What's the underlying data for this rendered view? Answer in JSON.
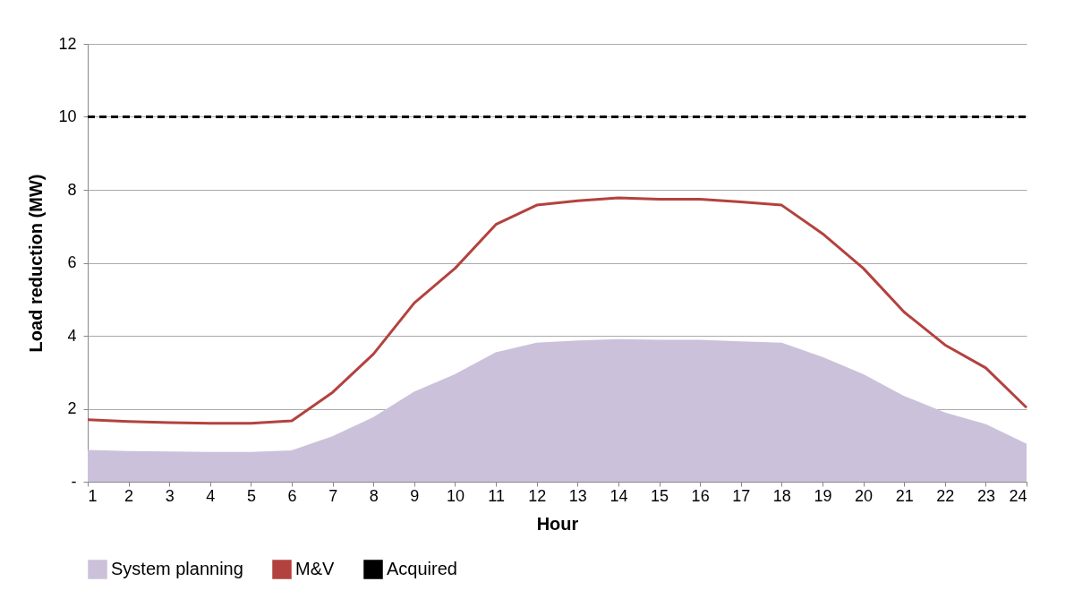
{
  "chart_data": {
    "type": "area",
    "xlabel": "Hour",
    "ylabel": "Load reduction (MW)",
    "x": [
      1,
      2,
      3,
      4,
      5,
      6,
      7,
      8,
      9,
      10,
      11,
      12,
      13,
      14,
      15,
      16,
      17,
      18,
      19,
      20,
      21,
      22,
      23,
      24
    ],
    "xlim": [
      1,
      24
    ],
    "xticks": [
      1,
      2,
      3,
      4,
      5,
      6,
      7,
      8,
      9,
      10,
      11,
      12,
      13,
      14,
      15,
      16,
      17,
      18,
      19,
      20,
      21,
      22,
      23,
      24
    ],
    "ylim": [
      0,
      12
    ],
    "yticks": [
      {
        "value": 0,
        "label": "-"
      },
      2,
      4,
      6,
      8,
      10,
      12
    ],
    "grid": "y",
    "legend": "bottom",
    "series": [
      {
        "name": "System planning",
        "color": "#ccc1da",
        "values": [
          0.85,
          0.82,
          0.81,
          0.8,
          0.8,
          0.84,
          1.23,
          1.75,
          2.45,
          2.93,
          3.53,
          3.79,
          3.85,
          3.89,
          3.87,
          3.87,
          3.83,
          3.79,
          3.4,
          2.93,
          2.33,
          1.88,
          1.56,
          1.02
        ]
      },
      {
        "name": "M&V",
        "type": "line",
        "line_style": "solid",
        "color": "#b3423f",
        "values": [
          1.7,
          1.65,
          1.62,
          1.6,
          1.6,
          1.67,
          2.45,
          3.5,
          4.9,
          5.85,
          7.05,
          7.58,
          7.7,
          7.78,
          7.74,
          7.74,
          7.67,
          7.58,
          6.8,
          5.85,
          4.65,
          3.75,
          3.12,
          2.03
        ]
      },
      {
        "name": "Acquired",
        "type": "line",
        "line_style": "dashed",
        "color": "#000000",
        "values": [
          10,
          10,
          10,
          10,
          10,
          10,
          10,
          10,
          10,
          10,
          10,
          10,
          10,
          10,
          10,
          10,
          10,
          10,
          10,
          10,
          10,
          10,
          10,
          10
        ]
      }
    ]
  }
}
